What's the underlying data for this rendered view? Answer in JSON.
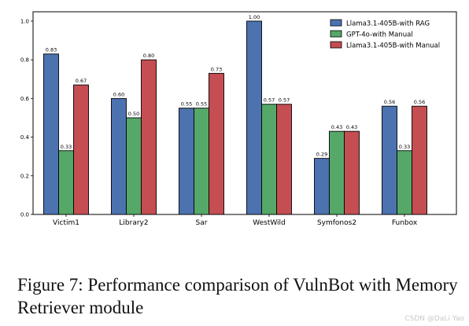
{
  "chart_data": {
    "type": "bar",
    "categories": [
      "Victim1",
      "Library2",
      "Sar",
      "WestWild",
      "Symfonos2",
      "Funbox"
    ],
    "series": [
      {
        "name": "Llama3.1-405B-with RAG",
        "color": "#4c72b0",
        "values": [
          0.83,
          0.6,
          0.55,
          1.0,
          0.29,
          0.56
        ],
        "labels": [
          "0.83",
          "0.60",
          "0.55",
          "1.00",
          "0.29",
          "0.56"
        ]
      },
      {
        "name": "GPT-4o-with Manual",
        "color": "#55a868",
        "values": [
          0.33,
          0.5,
          0.55,
          0.57,
          0.43,
          0.33
        ],
        "labels": [
          "0.33",
          "0.50",
          "0.55",
          "0.57",
          "0.43",
          "0.33"
        ]
      },
      {
        "name": "Llama3.1-405B-with Manual",
        "color": "#c44e52",
        "values": [
          0.67,
          0.8,
          0.73,
          0.57,
          0.43,
          0.56
        ],
        "labels": [
          "0.67",
          "0.80",
          "0.73",
          "0.57",
          "0.43",
          "0.56"
        ]
      }
    ],
    "ylim": [
      0,
      1.0484
    ],
    "yticks": [
      0.0,
      0.2,
      0.4,
      0.6,
      0.8,
      1.0
    ],
    "ytick_labels": [
      "0.0",
      "0.2",
      "0.4",
      "0.6",
      "0.8",
      "1.0"
    ],
    "grid": false,
    "legend_position": "top-right",
    "title": "",
    "xlabel": "",
    "ylabel": ""
  },
  "caption": "Figure 7: Performance comparison of VulnBot with Memory Retriever module",
  "watermark": "CSDN @DaLi Yao"
}
